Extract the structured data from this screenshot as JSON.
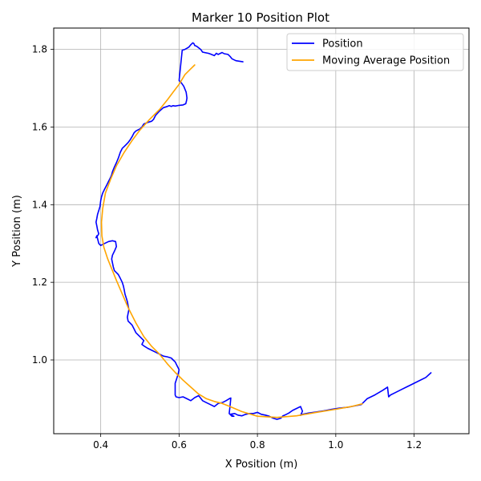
{
  "chart_data": {
    "type": "line",
    "title": "Marker 10 Position Plot",
    "xlabel": "X Position (m)",
    "ylabel": "Y Position (m)",
    "xlim": [
      0.28,
      1.34
    ],
    "ylim": [
      0.81,
      1.855
    ],
    "xticks": [
      0.4,
      0.6,
      0.8,
      1.0,
      1.2
    ],
    "xtick_labels": [
      "0.4",
      "0.6",
      "0.8",
      "1.0",
      "1.2"
    ],
    "yticks": [
      1.0,
      1.2,
      1.4,
      1.6,
      1.8
    ],
    "ytick_labels": [
      "1.0",
      "1.2",
      "1.4",
      "1.6",
      "1.8"
    ],
    "grid": true,
    "legend_position": "top-right",
    "series": [
      {
        "name": "Position",
        "color": "#0000ff",
        "x": [
          0.763,
          0.745,
          0.735,
          0.73,
          0.725,
          0.715,
          0.71,
          0.7,
          0.695,
          0.69,
          0.68,
          0.675,
          0.66,
          0.655,
          0.645,
          0.64,
          0.638,
          0.635,
          0.63,
          0.625,
          0.62,
          0.615,
          0.608,
          0.6,
          0.605,
          0.612,
          0.618,
          0.62,
          0.619,
          0.617,
          0.61,
          0.6,
          0.59,
          0.585,
          0.58,
          0.575,
          0.57,
          0.56,
          0.55,
          0.54,
          0.535,
          0.53,
          0.52,
          0.51,
          0.505,
          0.5,
          0.49,
          0.485,
          0.48,
          0.475,
          0.47,
          0.465,
          0.46,
          0.455,
          0.45,
          0.445,
          0.44,
          0.435,
          0.43,
          0.428,
          0.425,
          0.42,
          0.415,
          0.41,
          0.405,
          0.402,
          0.4,
          0.398,
          0.395,
          0.392,
          0.39,
          0.388,
          0.39,
          0.392,
          0.395,
          0.392,
          0.388,
          0.39,
          0.395,
          0.4,
          0.41,
          0.42,
          0.43,
          0.438,
          0.44,
          0.435,
          0.43,
          0.428,
          0.43,
          0.432,
          0.435,
          0.44,
          0.445,
          0.45,
          0.455,
          0.458,
          0.46,
          0.462,
          0.465,
          0.468,
          0.47,
          0.472,
          0.47,
          0.468,
          0.47,
          0.475,
          0.48,
          0.485,
          0.49,
          0.5,
          0.51,
          0.505,
          0.512,
          0.52,
          0.53,
          0.54,
          0.55,
          0.56,
          0.57,
          0.58,
          0.585,
          0.59,
          0.595,
          0.6,
          0.598,
          0.595,
          0.59,
          0.59,
          0.592,
          0.6,
          0.61,
          0.62,
          0.63,
          0.64,
          0.65,
          0.66,
          0.67,
          0.68,
          0.69,
          0.7,
          0.71,
          0.72,
          0.728,
          0.732,
          0.73,
          0.728,
          0.735,
          0.74,
          0.73,
          0.742,
          0.75,
          0.76,
          0.77,
          0.78,
          0.79,
          0.8,
          0.81,
          0.82,
          0.83,
          0.84,
          0.85,
          0.86,
          0.865,
          0.87,
          0.88,
          0.89,
          0.9,
          0.91,
          0.915,
          0.91,
          0.915,
          0.93,
          0.95,
          0.97,
          0.99,
          1.01,
          1.03,
          1.05,
          1.065,
          1.08,
          1.1,
          1.12,
          1.132,
          1.135,
          1.14,
          1.15,
          1.17,
          1.19,
          1.21,
          1.23,
          1.243
        ],
        "y": [
          1.768,
          1.771,
          1.776,
          1.782,
          1.787,
          1.789,
          1.792,
          1.787,
          1.79,
          1.784,
          1.788,
          1.79,
          1.793,
          1.8,
          1.808,
          1.81,
          1.815,
          1.817,
          1.812,
          1.806,
          1.803,
          1.8,
          1.798,
          1.72,
          1.715,
          1.705,
          1.69,
          1.675,
          1.668,
          1.66,
          1.657,
          1.656,
          1.654,
          1.655,
          1.653,
          1.655,
          1.653,
          1.65,
          1.641,
          1.63,
          1.62,
          1.615,
          1.612,
          1.608,
          1.6,
          1.595,
          1.59,
          1.585,
          1.575,
          1.567,
          1.56,
          1.555,
          1.55,
          1.545,
          1.535,
          1.52,
          1.508,
          1.497,
          1.485,
          1.477,
          1.47,
          1.46,
          1.45,
          1.44,
          1.43,
          1.42,
          1.41,
          1.395,
          1.385,
          1.375,
          1.365,
          1.355,
          1.345,
          1.335,
          1.325,
          1.32,
          1.315,
          1.32,
          1.3,
          1.295,
          1.3,
          1.305,
          1.307,
          1.305,
          1.292,
          1.28,
          1.27,
          1.26,
          1.25,
          1.24,
          1.23,
          1.225,
          1.22,
          1.21,
          1.2,
          1.19,
          1.18,
          1.17,
          1.16,
          1.15,
          1.14,
          1.13,
          1.12,
          1.11,
          1.1,
          1.095,
          1.09,
          1.08,
          1.07,
          1.06,
          1.05,
          1.04,
          1.035,
          1.03,
          1.025,
          1.02,
          1.015,
          1.01,
          1.008,
          1.005,
          1.0,
          0.995,
          0.985,
          0.975,
          0.965,
          0.955,
          0.94,
          0.91,
          0.905,
          0.903,
          0.905,
          0.9,
          0.895,
          0.903,
          0.908,
          0.895,
          0.89,
          0.885,
          0.88,
          0.888,
          0.89,
          0.895,
          0.9,
          0.902,
          0.88,
          0.862,
          0.855,
          0.855,
          0.86,
          0.862,
          0.858,
          0.856,
          0.86,
          0.862,
          0.862,
          0.865,
          0.86,
          0.858,
          0.855,
          0.85,
          0.847,
          0.85,
          0.856,
          0.858,
          0.863,
          0.87,
          0.875,
          0.88,
          0.868,
          0.857,
          0.86,
          0.863,
          0.866,
          0.869,
          0.873,
          0.876,
          0.878,
          0.882,
          0.885,
          0.9,
          0.91,
          0.922,
          0.93,
          0.905,
          0.91,
          0.915,
          0.925,
          0.935,
          0.945,
          0.955,
          0.967
        ]
      },
      {
        "name": "Moving Average Position",
        "color": "#ffa500",
        "x": [
          0.64,
          0.63,
          0.615,
          0.6,
          0.585,
          0.57,
          0.55,
          0.525,
          0.5,
          0.48,
          0.46,
          0.44,
          0.425,
          0.412,
          0.405,
          0.402,
          0.403,
          0.408,
          0.418,
          0.428,
          0.44,
          0.455,
          0.47,
          0.49,
          0.51,
          0.53,
          0.55,
          0.57,
          0.59,
          0.61,
          0.63,
          0.65,
          0.67,
          0.69,
          0.71,
          0.73,
          0.76,
          0.8,
          0.85,
          0.9,
          0.95,
          1.0,
          1.04,
          1.068
        ],
        "y": [
          1.76,
          1.75,
          1.735,
          1.71,
          1.69,
          1.67,
          1.645,
          1.62,
          1.592,
          1.565,
          1.535,
          1.5,
          1.465,
          1.43,
          1.39,
          1.355,
          1.32,
          1.29,
          1.26,
          1.235,
          1.205,
          1.17,
          1.135,
          1.095,
          1.06,
          1.035,
          1.015,
          0.99,
          0.968,
          0.948,
          0.93,
          0.912,
          0.9,
          0.893,
          0.888,
          0.88,
          0.867,
          0.855,
          0.852,
          0.856,
          0.865,
          0.873,
          0.88,
          0.887
        ]
      }
    ]
  }
}
